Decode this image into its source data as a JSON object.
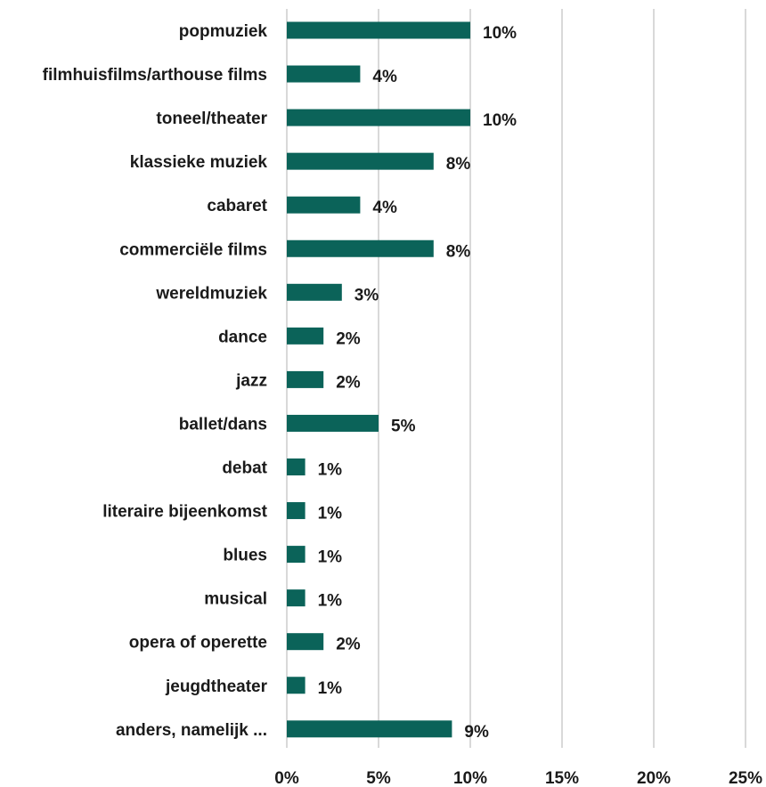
{
  "chart_data": {
    "type": "bar",
    "orientation": "horizontal",
    "categories": [
      "popmuziek",
      "filmhuisfilms/arthouse films",
      "toneel/theater",
      "klassieke muziek",
      "cabaret",
      "commerciële films",
      "wereldmuziek",
      "dance",
      "jazz",
      "ballet/dans",
      "debat",
      "literaire bijeenkomst",
      "blues",
      "musical",
      "opera of operette",
      "jeugdtheater",
      "anders, namelijk ..."
    ],
    "values": [
      10,
      4,
      10,
      8,
      4,
      8,
      3,
      2,
      2,
      5,
      1,
      1,
      1,
      1,
      2,
      1,
      9
    ],
    "value_labels": [
      "10%",
      "4%",
      "10%",
      "8%",
      "4%",
      "8%",
      "3%",
      "2%",
      "2%",
      "5%",
      "1%",
      "1%",
      "1%",
      "1%",
      "2%",
      "1%",
      "9%"
    ],
    "x_ticks": [
      0,
      5,
      10,
      15,
      20,
      25
    ],
    "x_tick_labels": [
      "0%",
      "5%",
      "10%",
      "15%",
      "20%",
      "25%"
    ],
    "xlim": [
      0,
      25
    ],
    "grid": true,
    "bar_color": "#0b6359",
    "title": "",
    "xlabel": "",
    "ylabel": ""
  }
}
